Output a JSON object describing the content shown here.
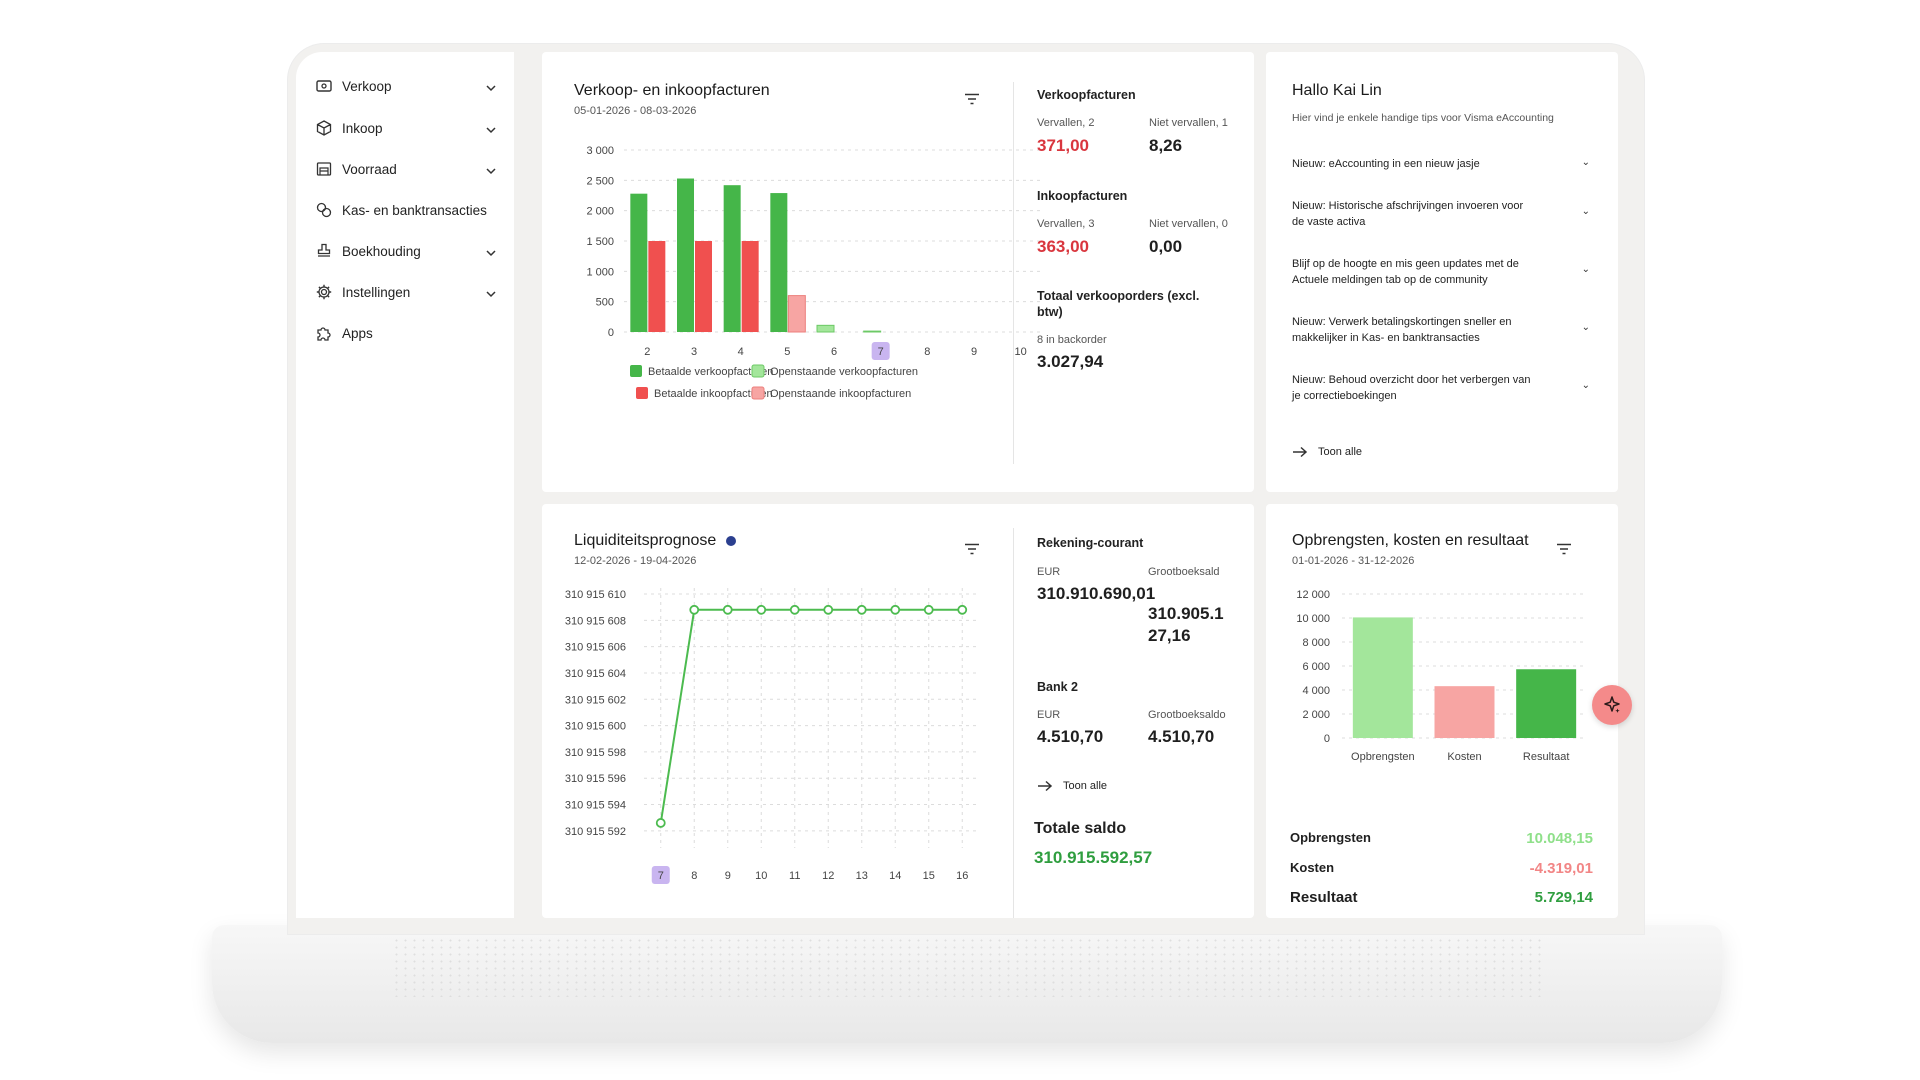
{
  "sidebar": {
    "items": [
      {
        "label": "Verkoop",
        "icon": "cash-icon",
        "expandable": true
      },
      {
        "label": "Inkoop",
        "icon": "box-icon",
        "expandable": true
      },
      {
        "label": "Voorraad",
        "icon": "warehouse-icon",
        "expandable": true
      },
      {
        "label": "Kas- en banktransacties",
        "icon": "transactions-icon",
        "expandable": false
      },
      {
        "label": "Boekhouding",
        "icon": "stamp-icon",
        "expandable": true
      },
      {
        "label": "Instellingen",
        "icon": "gear-icon",
        "expandable": true
      },
      {
        "label": "Apps",
        "icon": "puzzle-icon",
        "expandable": false
      }
    ]
  },
  "invoices": {
    "title": "Verkoop- en inkoopfacturen",
    "date_range": "05-01-2026 - 08-03-2026",
    "sales_title": "Verkoopfacturen",
    "sales_overdue_label": "Vervallen, 2",
    "sales_overdue_value": "371,00",
    "sales_not_overdue_label": "Niet vervallen, 1",
    "sales_not_overdue_value": "8,26",
    "purchase_title": "Inkoopfacturen",
    "purchase_overdue_label": "Vervallen, 3",
    "purchase_overdue_value": "363,00",
    "purchase_not_overdue_label": "Niet vervallen, 0",
    "purchase_not_overdue_value": "0,00",
    "orders_title": "Totaal verkooporders (excl. btw)",
    "backorder_label": "8 in backorder",
    "orders_value": "3.027,94"
  },
  "liquidity": {
    "title": "Liquiditeitsprognose",
    "date_range": "12-02-2026 - 19-04-2026",
    "account1_title": "Rekening-courant",
    "account1_currency": "EUR",
    "account1_ledger_label": "Grootboeksald",
    "account1_value": "310.910.690,01",
    "account1_ledger_value_line1": "310.905.1",
    "account1_ledger_value_line2": "27,16",
    "account2_title": "Bank 2",
    "account2_currency": "EUR",
    "account2_ledger_label": "Grootboeksaldo",
    "account2_value": "4.510,70",
    "account2_ledger_value": "4.510,70",
    "show_all": "Toon alle",
    "total_label": "Totale saldo",
    "total_value": "310.915.592,57"
  },
  "welcome": {
    "title": "Hallo Kai Lin",
    "subtitle": "Hier vind je enkele handige tips voor Visma eAccounting",
    "tips": [
      "Nieuw: eAccounting in een nieuw jasje",
      "Nieuw: Historische afschrijvingen invoeren voor de vaste activa",
      "Blijf op de hoogte en mis geen updates met de Actuele meldingen tab op de community",
      "Nieuw: Verwerk betalingskortingen sneller en makkelijker in Kas- en banktransacties",
      "Nieuw: Behoud overzicht door het verbergen van je correctieboekingen"
    ],
    "show_all": "Toon alle"
  },
  "results": {
    "title": "Opbrengsten, kosten en resultaat",
    "date_range": "01-01-2026 - 31-12-2026",
    "rows": [
      {
        "label": "Opbrengsten",
        "value": "10.048,15"
      },
      {
        "label": "Kosten",
        "value": "-4.319,01"
      },
      {
        "label": "Resultaat",
        "value": "5.729,14"
      }
    ]
  },
  "colors": {
    "paid_sales": "#45b649",
    "open_sales": "#a3e69b",
    "paid_purchase": "#f0504f",
    "open_purchase": "#f7a5a3",
    "line": "#4cbb4f",
    "highlight": "#c9b5f0"
  },
  "chart_data": [
    {
      "type": "bar",
      "categories": [
        "2",
        "3",
        "4",
        "5",
        "6",
        "7",
        "8",
        "9",
        "10"
      ],
      "highlight_category": "7",
      "ylim": [
        0,
        3000
      ],
      "yticks": [
        "3 000",
        "2 500",
        "2 000",
        "1 500",
        "1 000",
        "500",
        "0"
      ],
      "series": [
        {
          "name": "Betaalde verkoopfacturen",
          "values": [
            2280,
            2530,
            2420,
            2290,
            0,
            0,
            0,
            0,
            0
          ]
        },
        {
          "name": "Openstaande verkoopfacturen",
          "values": [
            0,
            0,
            0,
            0,
            110,
            15,
            0,
            0,
            0
          ]
        },
        {
          "name": "Betaalde inkoopfacturen",
          "values": [
            1500,
            1500,
            1500,
            0,
            0,
            0,
            0,
            0,
            0
          ]
        },
        {
          "name": "Openstaande inkoopfacturen",
          "values": [
            0,
            0,
            0,
            600,
            0,
            0,
            0,
            0,
            0
          ]
        }
      ]
    },
    {
      "type": "line",
      "x": [
        "7",
        "8",
        "9",
        "10",
        "11",
        "12",
        "13",
        "14",
        "15",
        "16"
      ],
      "highlight_category": "7",
      "y": [
        310915592.6,
        310915608.8,
        310915608.8,
        310915608.8,
        310915608.8,
        310915608.8,
        310915608.8,
        310915608.8,
        310915608.8,
        310915608.8
      ],
      "ylim": [
        310915591,
        310915610
      ],
      "yticks": [
        "310 915 610",
        "310 915 608",
        "310 915 606",
        "310 915 604",
        "310 915 602",
        "310 915 600",
        "310 915 598",
        "310 915 596",
        "310 915 594",
        "310 915 592"
      ]
    },
    {
      "type": "bar",
      "categories": [
        "Opbrengsten",
        "Kosten",
        "Resultaat"
      ],
      "values": [
        10048.15,
        4319.01,
        5729.14
      ],
      "ylim": [
        0,
        12000
      ],
      "yticks": [
        "12 000",
        "10 000",
        "8 000",
        "6 000",
        "4 000",
        "2 000",
        "0"
      ]
    }
  ]
}
